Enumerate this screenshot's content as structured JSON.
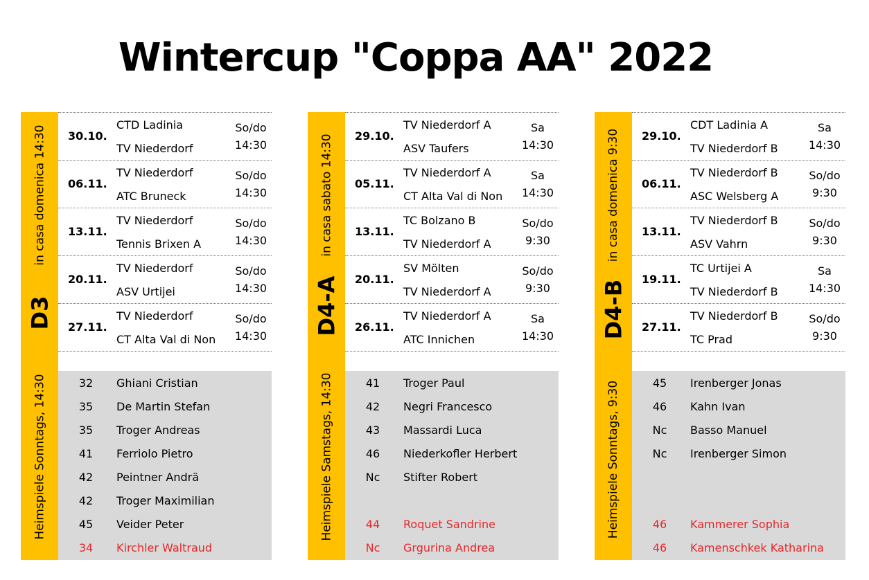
{
  "title": "Wintercup \"Coppa AA\"  2022",
  "groups": [
    {
      "code": "D3",
      "note_it": "in casa domenica 14:30",
      "note_de": "Heimspiele Sonntags, 14:30",
      "matches": [
        {
          "date": "30.10.",
          "home": "CTD Ladinia",
          "away": "TV Niederdorf",
          "day": "So/do",
          "time": "14:30"
        },
        {
          "date": "06.11.",
          "home": "TV Niederdorf",
          "away": "ATC Bruneck",
          "day": "So/do",
          "time": "14:30"
        },
        {
          "date": "13.11.",
          "home": "TV Niederdorf",
          "away": "Tennis Brixen A",
          "day": "So/do",
          "time": "14:30"
        },
        {
          "date": "20.11.",
          "home": "TV Niederdorf",
          "away": "ASV Urtijei",
          "day": "So/do",
          "time": "14:30"
        },
        {
          "date": "27.11.",
          "home": "TV Niederdorf",
          "away": "CT Alta Val di Non",
          "day": "So/do",
          "time": "14:30"
        }
      ],
      "players": [
        {
          "rank": "32",
          "name": "Ghiani Cristian",
          "red": false
        },
        {
          "rank": "35",
          "name": "De Martin Stefan",
          "red": false
        },
        {
          "rank": "35",
          "name": "Troger Andreas",
          "red": false
        },
        {
          "rank": "41",
          "name": "Ferriolo Pietro",
          "red": false
        },
        {
          "rank": "42",
          "name": "Peintner Andrä",
          "red": false
        },
        {
          "rank": "42",
          "name": "Troger Maximilian",
          "red": false
        },
        {
          "rank": "45",
          "name": "Veider Peter",
          "red": false
        },
        {
          "rank": "34",
          "name": "Kirchler Waltraud",
          "red": true
        }
      ]
    },
    {
      "code": "D4-A",
      "note_it": "in casa sabato 14:30",
      "note_de": "Heimspiele Samstags, 14:30",
      "matches": [
        {
          "date": "29.10.",
          "home": "TV Niederdorf A",
          "away": "ASV Taufers",
          "day": "Sa",
          "time": "14:30"
        },
        {
          "date": "05.11.",
          "home": "TV Niederdorf A",
          "away": "CT Alta Val di Non",
          "day": "Sa",
          "time": "14:30"
        },
        {
          "date": "13.11.",
          "home": "TC Bolzano B",
          "away": "TV Niederdorf A",
          "day": "So/do",
          "time": "9:30"
        },
        {
          "date": "20.11.",
          "home": "SV Mölten",
          "away": "TV Niederdorf A",
          "day": "So/do",
          "time": "9:30"
        },
        {
          "date": "26.11.",
          "home": "TV Niederdorf A",
          "away": "ATC Innichen",
          "day": "Sa",
          "time": "14:30"
        }
      ],
      "players": [
        {
          "rank": "41",
          "name": "Troger Paul",
          "red": false
        },
        {
          "rank": "42",
          "name": "Negri Francesco",
          "red": false
        },
        {
          "rank": "43",
          "name": "Massardi Luca",
          "red": false
        },
        {
          "rank": "46",
          "name": "Niederkofler Herbert",
          "red": false
        },
        {
          "rank": "Nc",
          "name": "Stifter Robert",
          "red": false
        },
        {
          "rank": "",
          "name": "",
          "red": false
        },
        {
          "rank": "44",
          "name": "Roquet Sandrine",
          "red": true
        },
        {
          "rank": "Nc",
          "name": "Grgurina Andrea",
          "red": true
        }
      ]
    },
    {
      "code": "D4-B",
      "note_it": "in casa domenica 9:30",
      "note_de": "Heimspiele Sonntags, 9:30",
      "matches": [
        {
          "date": "29.10.",
          "home": "CDT Ladinia A",
          "away": "TV Niederdorf B",
          "day": "Sa",
          "time": "14:30"
        },
        {
          "date": "06.11.",
          "home": "TV Niederdorf B",
          "away": "ASC Welsberg A",
          "day": "So/do",
          "time": "9:30"
        },
        {
          "date": "13.11.",
          "home": "TV Niederdorf B",
          "away": "ASV Vahrn",
          "day": "So/do",
          "time": "9:30"
        },
        {
          "date": "19.11.",
          "home": "TC Urtijei A",
          "away": "TV Niederdorf B",
          "day": "Sa",
          "time": "14:30"
        },
        {
          "date": "27.11.",
          "home": "TV Niederdorf B",
          "away": "TC Prad",
          "day": "So/do",
          "time": "9:30"
        }
      ],
      "players": [
        {
          "rank": "45",
          "name": "Irenberger Jonas",
          "red": false
        },
        {
          "rank": "46",
          "name": "Kahn Ivan",
          "red": false
        },
        {
          "rank": "Nc",
          "name": "Basso Manuel",
          "red": false
        },
        {
          "rank": "Nc",
          "name": "Irenberger Simon",
          "red": false
        },
        {
          "rank": "",
          "name": "",
          "red": false
        },
        {
          "rank": "",
          "name": "",
          "red": false
        },
        {
          "rank": "46",
          "name": "Kammerer Sophia",
          "red": true
        },
        {
          "rank": "46",
          "name": "Kamenschkek Katharina",
          "red": true
        }
      ]
    }
  ]
}
